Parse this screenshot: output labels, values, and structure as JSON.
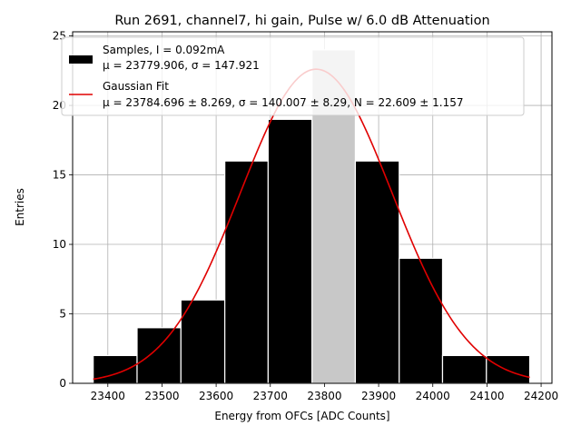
{
  "chart_data": {
    "type": "bar",
    "title": "Run 2691, channel7, hi gain, Pulse w/ 6.0 dB Attenuation",
    "xlabel": "Energy from OFCs [ADC Counts]",
    "ylabel": "Entries",
    "xlim": [
      23335,
      24220
    ],
    "ylim": [
      0,
      25.3
    ],
    "grid": true,
    "legend_position": "upper-left",
    "x_ticks": [
      "23400",
      "23500",
      "23600",
      "23700",
      "23800",
      "23900",
      "24000",
      "24100",
      "24200"
    ],
    "y_ticks": [
      "0",
      "5",
      "10",
      "15",
      "20",
      "25"
    ],
    "histogram": {
      "name": "Samples, I = 0.092mA",
      "stats_label": "μ = 23779.906, σ = 147.921",
      "color": "#000000",
      "bin_edges": [
        23373,
        23454,
        23535,
        23616,
        23696,
        23777,
        23857,
        23938,
        24018,
        24099,
        24179
      ],
      "counts": [
        2,
        4,
        6,
        16,
        19,
        24,
        16,
        9,
        2,
        2
      ],
      "highlighted_bin": 5,
      "highlight_color": "#c8c8c8"
    },
    "fit": {
      "name": "Gaussian Fit",
      "stats_label": "μ = 23784.696 ± 8.269, σ = 140.007 ± 8.29, N = 22.609 ± 1.157",
      "color": "#e00000",
      "mu": 23784.696,
      "sigma": 140.007,
      "amplitude": 22.609
    }
  }
}
